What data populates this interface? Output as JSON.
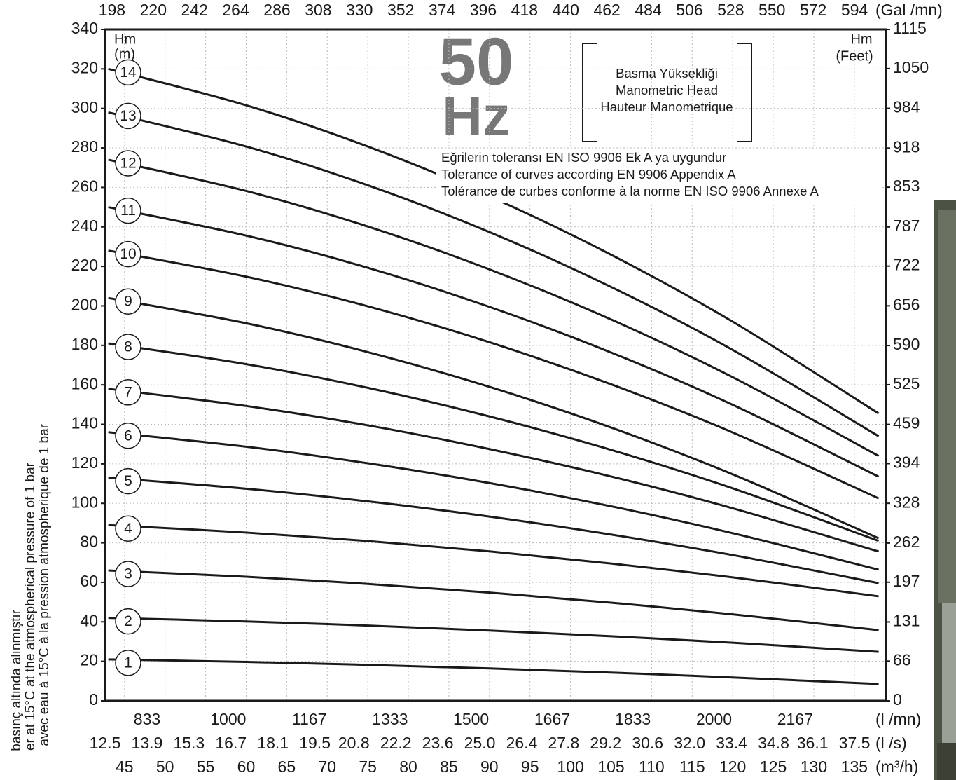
{
  "chart_data": {
    "type": "line",
    "big_label": "50",
    "big_unit": "Hz",
    "head_box": [
      "Basma Yüksekliği",
      "Manometric Head",
      "Hauteur Manometrique"
    ],
    "tolerance": [
      "Eğrilerin toleransı EN ISO 9906 Ek A ya uygundur",
      "Tolerance of curves according EN 9906 Appendix A",
      "Tolérance de curbes conforme à la norme EN ISO 9906 Annexe A"
    ],
    "side_notes": [
      "basınç altında alınmıştır",
      "er at 15°C at the atmospherical pressure of 1 bar",
      "avec eau à 15°C à la pression atmospherique de 1 bar"
    ],
    "y_label": [
      "Hm",
      "(m)"
    ],
    "y2_label": [
      "Hm",
      "(Feet)"
    ],
    "x": [
      43,
      60,
      75,
      90,
      105,
      120,
      138
    ],
    "xlim": [
      42.6,
      138.9
    ],
    "xticks": [
      45,
      50,
      55,
      60,
      65,
      70,
      75,
      80,
      85,
      90,
      95,
      100,
      105,
      110,
      115,
      120,
      125,
      130,
      135
    ],
    "x_unit": "(m³/h)",
    "ylim": [
      0,
      340
    ],
    "yticks": [
      0,
      20,
      40,
      60,
      80,
      100,
      120,
      140,
      160,
      180,
      200,
      220,
      240,
      260,
      280,
      300,
      320,
      340
    ],
    "y2lim": [
      0,
      1115
    ],
    "y2ticks": [
      0,
      66,
      131,
      197,
      262,
      328,
      394,
      459,
      525,
      590,
      656,
      722,
      787,
      853,
      918,
      984,
      1050,
      1115
    ],
    "top_axis": {
      "unit": "(Gal /mn)",
      "lim": [
        194.3,
        610.8
      ],
      "ticks": [
        198,
        220,
        242,
        264,
        286,
        308,
        330,
        352,
        374,
        396,
        418,
        440,
        462,
        484,
        506,
        528,
        550,
        572,
        594
      ]
    },
    "lmn_axis": {
      "unit": "(l /mn)",
      "lim": [
        746.5,
        2354
      ],
      "ticks": [
        833,
        1000,
        1167,
        1333,
        1500,
        1667,
        1833,
        2000,
        2167
      ]
    },
    "ls_axis": {
      "unit": "(l /s)",
      "lim": [
        12.5,
        38.55
      ],
      "ticks": [
        12.5,
        13.9,
        15.3,
        16.7,
        18.1,
        19.5,
        20.8,
        22.2,
        23.6,
        {
          "value": 25,
          "label": "25.0"
        },
        26.4,
        27.8,
        29.2,
        30.6,
        {
          "value": 32,
          "label": "32.0"
        },
        33.4,
        34.8,
        36.1,
        37.5
      ]
    },
    "grid": true,
    "color": "#1a1a1a",
    "series": [
      {
        "name": "1",
        "values": [
          21,
          19.7,
          18.2,
          16.4,
          14.3,
          11.8,
          8.5
        ]
      },
      {
        "name": "2",
        "values": [
          42,
          40.2,
          38.1,
          35.6,
          32.7,
          29.4,
          24.8
        ]
      },
      {
        "name": "3",
        "values": [
          66,
          62.8,
          59.2,
          54.8,
          49.7,
          43.8,
          35.8
        ]
      },
      {
        "name": "4",
        "values": [
          89,
          85.2,
          80.9,
          75.7,
          69.5,
          62.5,
          52.9
        ]
      },
      {
        "name": "5",
        "values": [
          113,
          107.4,
          101.0,
          93.3,
          84.2,
          73.8,
          59.6
        ]
      },
      {
        "name": "6",
        "values": [
          136,
          128.7,
          120.3,
          110.3,
          98.5,
          84.9,
          66.4
        ]
      },
      {
        "name": "7",
        "values": [
          158,
          149.3,
          139.5,
          127.5,
          113.6,
          97.5,
          75.6
        ]
      },
      {
        "name": "8",
        "values": [
          181,
          170.5,
          158.5,
          144.0,
          127.1,
          107.6,
          81
        ]
      },
      {
        "name": "9",
        "values": [
          204,
          191.2,
          176.6,
          159.0,
          138.4,
          114.7,
          82.3
        ]
      },
      {
        "name": "10",
        "values": [
          228,
          214.8,
          199.8,
          181.6,
          160.3,
          135.9,
          102.5
        ]
      },
      {
        "name": "11",
        "values": [
          250,
          235.6,
          219.3,
          199.5,
          176.4,
          149.9,
          113.5
        ]
      },
      {
        "name": "12",
        "values": [
          274,
          258.2,
          240.2,
          218.5,
          193.1,
          163.9,
          124
        ]
      },
      {
        "name": "13",
        "values": [
          298,
          280.7,
          261.1,
          237.4,
          209.6,
          177.7,
          134
        ]
      },
      {
        "name": "14",
        "values": [
          320,
          301.6,
          280.7,
          255.5,
          225.9,
          192.0,
          145.5
        ]
      }
    ]
  }
}
